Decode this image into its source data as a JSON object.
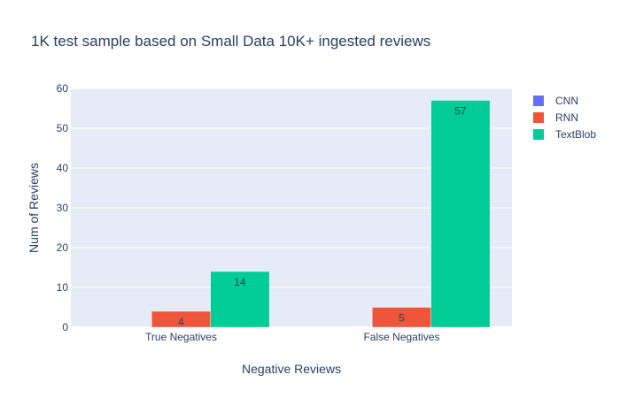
{
  "chart_data": {
    "type": "bar",
    "title": "1K test sample based on Small Data 10K+ ingested reviews",
    "xlabel": "Negative Reviews",
    "ylabel": "Num of Reviews",
    "categories": [
      "True Negatives",
      "False Negatives"
    ],
    "ylim": [
      0,
      60
    ],
    "yticks": [
      0,
      10,
      20,
      30,
      40,
      50,
      60
    ],
    "grid": true,
    "legend_position": "top-right",
    "series": [
      {
        "name": "CNN",
        "color": "#636efa",
        "values": [
          0,
          0
        ],
        "labels": [
          "",
          ""
        ]
      },
      {
        "name": "RNN",
        "color": "#ef553b",
        "values": [
          4,
          5
        ],
        "labels": [
          "4",
          "5"
        ]
      },
      {
        "name": "TextBlob",
        "color": "#00cc96",
        "values": [
          14,
          57
        ],
        "labels": [
          "14",
          "57"
        ]
      }
    ],
    "plot_background": "#e5ecf6"
  }
}
